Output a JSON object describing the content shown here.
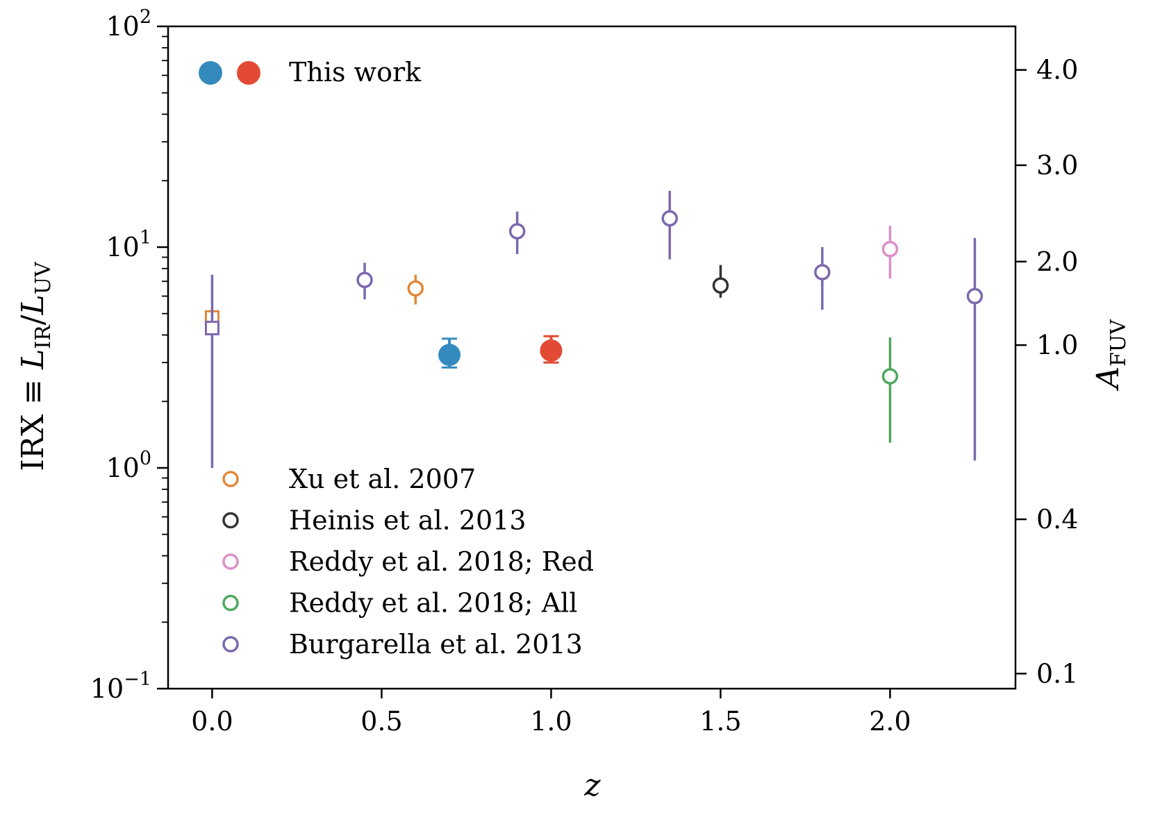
{
  "chart_data": {
    "type": "scatter",
    "xlabel": "z",
    "ylabel": {
      "prefix": "IRX ≡ ",
      "l": "L",
      "sub_ir": "IR",
      "slash": "/",
      "sub_uv": "UV"
    },
    "y2label": {
      "a": "A",
      "sub": "FUV"
    },
    "xlim": [
      -0.13,
      2.37
    ],
    "ylim": [
      0.1,
      100
    ],
    "yscale": "log",
    "x_ticks": [
      0.0,
      0.5,
      1.0,
      1.5,
      2.0
    ],
    "x_tick_labels": [
      "0.0",
      "0.5",
      "1.0",
      "1.5",
      "2.0"
    ],
    "y_ticks": [
      {
        "value": 0.1,
        "base": "10",
        "exp": "−1"
      },
      {
        "value": 1,
        "base": "10",
        "exp": "0"
      },
      {
        "value": 10,
        "base": "10",
        "exp": "1"
      },
      {
        "value": 100,
        "base": "10",
        "exp": "2"
      }
    ],
    "y2_ticks": [
      {
        "irx": 0.117,
        "label": "0.1"
      },
      {
        "irx": 0.585,
        "label": "0.4"
      },
      {
        "irx": 3.6,
        "label": "1.0"
      },
      {
        "irx": 8.6,
        "label": "2.0"
      },
      {
        "irx": 23.5,
        "label": "3.0"
      },
      {
        "irx": 63.5,
        "label": "4.0"
      }
    ],
    "series": [
      {
        "name": "This work",
        "legend": "top",
        "color": "#348ABD",
        "marker": "filled-circle",
        "points": [
          {
            "x": 0.7,
            "y": 3.25,
            "ylo": 2.85,
            "yhi": 3.85
          }
        ]
      },
      {
        "name": "This work",
        "legend": "top",
        "color": "#E24A33",
        "marker": "filled-circle",
        "points": [
          {
            "x": 1.0,
            "y": 3.4,
            "ylo": 3.0,
            "yhi": 3.95
          }
        ]
      },
      {
        "name": "Xu et al. 2007",
        "legend": "bottom",
        "color": "#E0883A",
        "marker": "open-circle",
        "points": [
          {
            "x": 0.6,
            "y": 6.5,
            "ylo": 5.5,
            "yhi": 7.5
          },
          {
            "x": 0.0,
            "y": 4.8,
            "ylo": 4.3,
            "yhi": 5.3,
            "marker": "open-square"
          }
        ]
      },
      {
        "name": "Heinis et al. 2013",
        "legend": "bottom",
        "color": "#333333",
        "marker": "open-circle",
        "points": [
          {
            "x": 1.5,
            "y": 6.7,
            "ylo": 5.9,
            "yhi": 8.3
          }
        ]
      },
      {
        "name": "Reddy et al. 2018; Red",
        "legend": "bottom",
        "color": "#DC8FC8",
        "marker": "open-circle",
        "points": [
          {
            "x": 2.0,
            "y": 9.8,
            "ylo": 7.2,
            "yhi": 12.5
          }
        ]
      },
      {
        "name": "Reddy et al. 2018; All",
        "legend": "bottom",
        "color": "#4FA85E",
        "marker": "open-circle",
        "points": [
          {
            "x": 2.0,
            "y": 2.6,
            "ylo": 1.3,
            "yhi": 3.9
          }
        ]
      },
      {
        "name": "Burgarella et al. 2013",
        "legend": "bottom",
        "color": "#7B68AE",
        "marker": "open-circle",
        "points": [
          {
            "x": 0.0,
            "y": 4.3,
            "ylo": 1.0,
            "yhi": 7.5,
            "marker": "open-square"
          },
          {
            "x": 0.45,
            "y": 7.1,
            "ylo": 5.8,
            "yhi": 8.5
          },
          {
            "x": 0.9,
            "y": 11.8,
            "ylo": 9.3,
            "yhi": 14.5
          },
          {
            "x": 1.35,
            "y": 13.5,
            "ylo": 8.8,
            "yhi": 18.0
          },
          {
            "x": 1.8,
            "y": 7.7,
            "ylo": 5.2,
            "yhi": 10.0
          },
          {
            "x": 2.25,
            "y": 6.0,
            "ylo": 1.08,
            "yhi": 11.0
          }
        ]
      }
    ],
    "legend_top": {
      "label": "This work",
      "colors": [
        "#348ABD",
        "#E24A33"
      ]
    },
    "legend_bottom": [
      {
        "label": "Xu et al. 2007",
        "color": "#E0883A"
      },
      {
        "label": "Heinis et al. 2013",
        "color": "#333333"
      },
      {
        "label": "Reddy et al. 2018; Red",
        "color": "#DC8FC8"
      },
      {
        "label": "Reddy et al. 2018; All",
        "color": "#4FA85E"
      },
      {
        "label": "Burgarella et al. 2013",
        "color": "#7B68AE"
      }
    ],
    "legend_placement": [
      "top-left",
      "bottom-left"
    ]
  }
}
